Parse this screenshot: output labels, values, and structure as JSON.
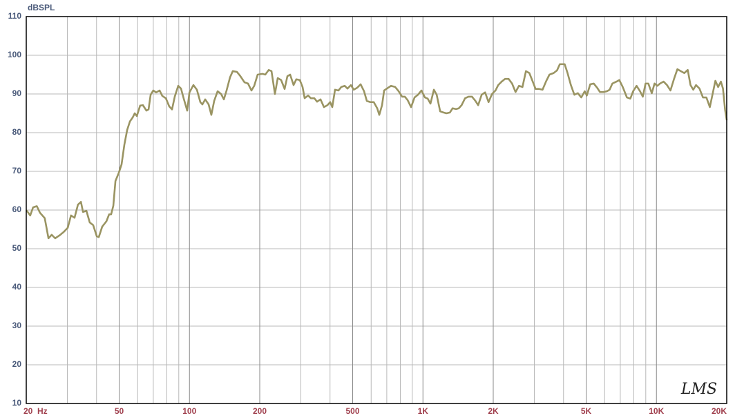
{
  "chart_data": {
    "type": "line",
    "y_label": "dBSPL",
    "watermark": "LMS",
    "log_x": true,
    "grid": true,
    "color": "#9a9462",
    "xlim": [
      20,
      20000
    ],
    "ylim": [
      10,
      110
    ],
    "yticks": [
      10,
      20,
      30,
      40,
      50,
      60,
      70,
      80,
      90,
      100,
      110
    ],
    "xticks": [
      {
        "value": 20,
        "label": "20  Hz"
      },
      50,
      100,
      200,
      500,
      {
        "value": 1000,
        "label": "1K"
      },
      {
        "value": 2000,
        "label": "2K"
      },
      {
        "value": 5000,
        "label": "5K"
      },
      {
        "value": 10000,
        "label": "10K"
      },
      {
        "value": 20000,
        "label": "20K"
      }
    ],
    "x_minor_ticks": [
      30,
      40,
      60,
      70,
      80,
      90,
      300,
      400,
      600,
      700,
      800,
      900,
      3000,
      4000,
      6000,
      7000,
      8000,
      9000
    ],
    "x": [
      20,
      20.8,
      21.4,
      22.2,
      22.9,
      24,
      24.9,
      25.7,
      26.6,
      27.7,
      28.9,
      30.1,
      31.1,
      32.2,
      33.3,
      34.3,
      35,
      36.2,
      37.4,
      38.7,
      40.1,
      40.9,
      42.3,
      44.1,
      45.3,
      46.2,
      47.2,
      48.2,
      49.8,
      51.2,
      52.6,
      54.1,
      55.6,
      57.1,
      58.3,
      59.5,
      61.5,
      63.2,
      65.4,
      66.8,
      68.2,
      70,
      72,
      74.5,
      76.5,
      79.2,
      81.9,
      84.2,
      86.5,
      89.5,
      92,
      94.5,
      97.8,
      100,
      104,
      107.6,
      111.3,
      113.6,
      116.8,
      120.8,
      124.1,
      127.6,
      132,
      136.6,
      140.4,
      144.2,
      149.2,
      153.3,
      159.7,
      165.2,
      172.1,
      178.1,
      184.3,
      189.4,
      195.9,
      205.5,
      211.2,
      218.5,
      224.6,
      232.3,
      238.8,
      247,
      255.6,
      262.7,
      269.9,
      279.2,
      286.9,
      296.9,
      305.1,
      311.4,
      322.2,
      331.1,
      342.6,
      352,
      364.2,
      376.8,
      389.9,
      400.6,
      408.9,
      420.2,
      434.8,
      446.8,
      462.3,
      475.1,
      491.6,
      505.1,
      522.7,
      540.8,
      559.5,
      575,
      595,
      615.6,
      637,
      650.1,
      668.1,
      681.9,
      700.8,
      730,
      760.5,
      786.9,
      814.1,
      836.6,
      859.8,
      889.6,
      920.4,
      952.4,
      985.4,
      1020,
      1048,
      1077,
      1114,
      1145,
      1185,
      1226,
      1260,
      1304,
      1340,
      1386,
      1424,
      1464,
      1515,
      1567,
      1622,
      1678,
      1724,
      1784,
      1846,
      1910,
      1976,
      2045,
      2101,
      2174,
      2249,
      2327,
      2408,
      2492,
      2578,
      2668,
      2761,
      2856,
      2935,
      3037,
      3142,
      3252,
      3364,
      3481,
      3627,
      3753,
      3857,
      4045,
      4157,
      4301,
      4450,
      4605,
      4765,
      4930,
      5032,
      5206,
      5387,
      5574,
      5728,
      5927,
      6132,
      6302,
      6476,
      6746,
      6933,
      7173,
      7472,
      7731,
      7945,
      8221,
      8506,
      8741,
      8983,
      9231,
      9552,
      9815,
      10087,
      10366,
      10725,
      11097,
      11482,
      11880,
      12292,
      12718,
      13159,
      13615,
      13991,
      14378,
      14775,
      15288,
      15818,
      16366,
      16933,
      17400,
      17881,
      18375,
      18883,
      19272,
      19670,
      20000
    ],
    "values": [
      60,
      58.6,
      60.7,
      61,
      59.3,
      57.9,
      52.7,
      53.6,
      52.7,
      53.4,
      54.3,
      55.4,
      58.6,
      58,
      61.4,
      62.1,
      59.5,
      59.8,
      56.8,
      56.1,
      53.2,
      53,
      55.7,
      57.1,
      58.9,
      58.9,
      61.1,
      67.5,
      69.6,
      71.8,
      76.8,
      80.7,
      82.9,
      83.9,
      85,
      84.3,
      87,
      87.1,
      85.7,
      86,
      89.8,
      90.9,
      90.4,
      90.9,
      89.5,
      88.9,
      86.8,
      86,
      89.3,
      92.1,
      91.4,
      88.8,
      85.7,
      90.4,
      92.3,
      91.1,
      87.9,
      87.3,
      88.6,
      87.3,
      84.6,
      88.2,
      90.7,
      90,
      88.6,
      90.9,
      94.3,
      95.9,
      95.7,
      94.6,
      93,
      92.7,
      90.9,
      92.1,
      95,
      95.2,
      95,
      96.2,
      95.9,
      90,
      94.1,
      93.6,
      91.3,
      94.6,
      95,
      92.3,
      93.8,
      93.6,
      91.8,
      88.9,
      89.6,
      88.9,
      88.9,
      88,
      88.6,
      86.6,
      87.1,
      87.9,
      86.6,
      91.1,
      90.9,
      91.8,
      92.1,
      91.4,
      92.3,
      91.1,
      91.6,
      92.5,
      90.7,
      88.2,
      87.9,
      87.9,
      86.3,
      84.6,
      87.1,
      90.9,
      91.4,
      92.1,
      91.8,
      90.7,
      89.3,
      89.3,
      88.4,
      86.6,
      89.1,
      89.8,
      90.9,
      89.1,
      88.8,
      87.5,
      91.1,
      89.8,
      85.5,
      85.2,
      85,
      85.2,
      86.3,
      86.1,
      86.3,
      87.1,
      88.9,
      89.3,
      89.3,
      88.2,
      87.1,
      89.8,
      90.4,
      87.9,
      90,
      90.9,
      92.3,
      93.2,
      93.9,
      93.9,
      92.7,
      90.5,
      92.1,
      91.8,
      95.9,
      95.4,
      93.6,
      91.3,
      91.3,
      91.1,
      93.2,
      95,
      95.4,
      96.1,
      97.7,
      97.7,
      95.5,
      92.3,
      89.8,
      90.2,
      89.1,
      90.7,
      89.6,
      92.5,
      92.7,
      91.6,
      90.5,
      90.5,
      90.7,
      91.1,
      92.7,
      93.2,
      93.6,
      91.8,
      89.1,
      88.8,
      90.7,
      92.1,
      90.7,
      89.3,
      92.7,
      92.7,
      90.2,
      92.7,
      92.1,
      92.7,
      93.2,
      92.3,
      90.9,
      93.8,
      96.4,
      95.9,
      95.4,
      96.2,
      92.3,
      91.1,
      92.3,
      91.4,
      89.1,
      89.1,
      86.6,
      90,
      93.4,
      91.8,
      93.2,
      91.4,
      86,
      83.2
    ]
  }
}
